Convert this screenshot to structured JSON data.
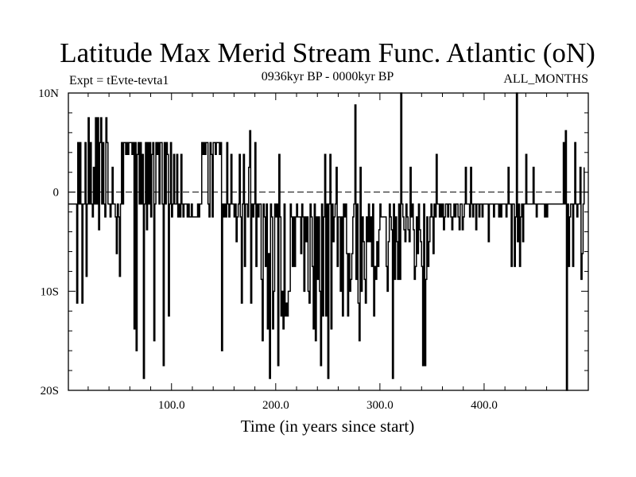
{
  "chart_data": {
    "type": "line",
    "title": "Latitude Max Merid Stream Func. Atlantic (oN)",
    "subtitle_left": "Expt = tEvte-tevta1",
    "subtitle_center": "0936kyr BP - 0000kyr BP",
    "subtitle_right": "ALL_MONTHS",
    "xlabel": "Time (in years since start)",
    "ylabel": "",
    "xlim": [
      1,
      500
    ],
    "ylim": [
      -20,
      10
    ],
    "x_ticks": [
      100,
      200,
      300,
      400
    ],
    "x_tick_labels": [
      "100.0",
      "200.0",
      "300.0",
      "400.0"
    ],
    "y_ticks": [
      -20,
      -10,
      0,
      10
    ],
    "y_tick_labels": [
      "20S",
      "10S",
      "0",
      "10N"
    ],
    "reference_line_y": 0,
    "series": [
      {
        "name": "Latitude of max Atlantic meridional stream function",
        "x_start": 1,
        "x_step": 1,
        "values": [
          -1.2,
          -1.2,
          -1.2,
          -1.2,
          -1.2,
          -1.2,
          -1.2,
          -1.2,
          -11.2,
          5,
          -1.2,
          5,
          -1.2,
          -11.2,
          -1.2,
          -1.2,
          5,
          -8.5,
          -1.2,
          7.5,
          -1.2,
          5,
          -1.2,
          -2.5,
          2.5,
          -1.2,
          7.5,
          -1.2,
          7.5,
          -3.8,
          5,
          7.5,
          -1.2,
          5,
          -1.2,
          -2.5,
          7.5,
          5,
          -1.2,
          -1.2,
          -2.5,
          -1.2,
          2.5,
          -1.2,
          -1.2,
          -2.5,
          -6.2,
          -1.2,
          -2.5,
          -8.5,
          -1.2,
          5,
          -1.2,
          5,
          5,
          3.8,
          5,
          3.8,
          5,
          5,
          5,
          3.8,
          5,
          -13.8,
          5,
          -16,
          3.8,
          5,
          -1.2,
          5,
          -1.2,
          3.8,
          -18.8,
          -1.2,
          5,
          -3.8,
          5,
          -1.2,
          5,
          -2.5,
          3.8,
          5,
          -15,
          -1.2,
          5,
          3.8,
          5,
          -1.2,
          5,
          5,
          -1.2,
          -17.5,
          5,
          -1.2,
          5,
          3.8,
          -12.5,
          -1.2,
          5,
          -2.5,
          -1.2,
          3.8,
          -1.2,
          -1.2,
          3.8,
          -2.5,
          -1.2,
          -2.5,
          3.8,
          -1.2,
          -2.5,
          -1.2,
          -1.2,
          -1.2,
          -2.5,
          -1.2,
          -2.5,
          -2.5,
          -1.2,
          -2.5,
          -2.5,
          -2.5,
          -2.5,
          -2.5,
          -1.2,
          -2.5,
          -1.2,
          -1.2,
          5,
          3.8,
          5,
          3.8,
          5,
          5,
          -1.2,
          -2.5,
          5,
          3.8,
          -2.5,
          5,
          5,
          3.8,
          5,
          5,
          5,
          3.8,
          5,
          -16,
          -1.2,
          -2.5,
          -1.2,
          -2.5,
          5,
          -1.2,
          -2.5,
          -1.2,
          3.8,
          -1.2,
          -1.2,
          -2.5,
          -1.2,
          -5,
          -2.5,
          -1.2,
          3.8,
          -2.5,
          -11.2,
          -1.2,
          3.8,
          -7.5,
          -1.2,
          -1.2,
          -2.5,
          2.5,
          6.2,
          -11.2,
          -1.2,
          -2.5,
          -1.2,
          5,
          -7.5,
          -1.2,
          -2.5,
          -1.2,
          -1.2,
          -8.8,
          -15,
          -1.2,
          -2.5,
          -7.5,
          -1.2,
          -13.8,
          -6.2,
          -18.8,
          -1.2,
          -2.5,
          -13.8,
          -10,
          -1.2,
          -2.5,
          -1.2,
          -17.5,
          3.8,
          -2.5,
          -12.5,
          -10,
          -13.8,
          -1.2,
          -12.5,
          -11.2,
          -12.5,
          -10,
          -10,
          -1.2,
          -2.5,
          -7.5,
          -2.5,
          -7.5,
          -2.5,
          -1.2,
          -2.5,
          -2.5,
          -2.5,
          -6.2,
          -1.2,
          -2.5,
          -10,
          -2.5,
          -5,
          -2.5,
          -10,
          -11.2,
          -1.2,
          -2.5,
          -7.5,
          -13.8,
          -1.2,
          -15,
          -2.5,
          -8.8,
          -2.5,
          -10,
          -17.5,
          -1.2,
          -12.5,
          -2.5,
          3.8,
          -12.5,
          -1.2,
          -18.8,
          -1.2,
          3.8,
          -13.8,
          -1.2,
          -5,
          -2.5,
          -1.2,
          2.5,
          -7.5,
          -2.5,
          -2.5,
          -10,
          -2.5,
          -12.5,
          -1.2,
          -2.5,
          -1.2,
          -6.2,
          -12.5,
          -6.2,
          -10,
          -8.8,
          -6.2,
          -2.5,
          -1.2,
          8.8,
          -8.8,
          -1.2,
          -11.2,
          -15,
          2.5,
          -10,
          -2.5,
          -5,
          -8.8,
          -11.2,
          -2.5,
          -5,
          -1.2,
          -5,
          -2.5,
          -7.5,
          -1.2,
          -12.5,
          -7.5,
          -8.8,
          -5,
          -7.5,
          -3.8,
          -1.2,
          -2.5,
          -2.5,
          -2.5,
          -2.5,
          -2.5,
          -7.5,
          -10,
          -5,
          -1.2,
          -2.5,
          -3.8,
          -18.8,
          -1.2,
          -8.8,
          -2.5,
          -5,
          -8.8,
          -1.2,
          -8.8,
          10,
          -1.2,
          -2.5,
          -3.8,
          -5,
          -1.2,
          -2.5,
          -3.8,
          -5,
          2.5,
          -2.5,
          -1.2,
          -3.8,
          -8.8,
          -7.5,
          -2.5,
          -6.2,
          -1.2,
          -3.8,
          -5,
          -7.5,
          -17.5,
          -1.2,
          -17.5,
          -8.8,
          -2.5,
          -7.5,
          -5,
          -2.5,
          -1.2,
          -2.5,
          -6.2,
          -1.2,
          -2.5,
          3.8,
          -1.2,
          -1.2,
          -2.5,
          -1.2,
          -2.5,
          -1.2,
          -3.8,
          -2.5,
          -1.2,
          -1.2,
          -2.5,
          -1.2,
          -1.2,
          -2.5,
          -3.8,
          -2.5,
          -1.2,
          -2.5,
          -1.2,
          -1.2,
          -2.5,
          -3.8,
          -1.2,
          -1.2,
          -3.8,
          -2.5,
          -1.2,
          2.5,
          -1.2,
          -1.2,
          -1.2,
          -2.5,
          2.5,
          -1.2,
          -2.5,
          -1.2,
          -1.2,
          -3.8,
          -1.2,
          -1.2,
          -2.5,
          -1.2,
          -1.2,
          -2.5,
          -1.2,
          -1.2,
          -1.2,
          -1.2,
          -1.2,
          -5,
          -1.2,
          -1.2,
          -1.2,
          -1.2,
          -2.5,
          -1.2,
          -1.2,
          -1.2,
          -1.2,
          -2.5,
          -1.2,
          -2.5,
          -1.2,
          -1.2,
          -1.2,
          -1.2,
          -2.5,
          -1.2,
          2.5,
          -1.2,
          -1.2,
          -7.5,
          -1.2,
          -1.2,
          -7.5,
          -2.5,
          10,
          -5,
          -1.2,
          -7.5,
          -2.5,
          -1.2,
          -5,
          -1.2,
          -1.2,
          3.8,
          -1.2,
          -1.2,
          -1.2,
          -1.2,
          -1.2,
          -1.2,
          2.5,
          -1.2,
          -1.2,
          -2.5,
          -1.2,
          -1.2,
          -1.2,
          -1.2,
          -1.2,
          -1.2,
          -1.2,
          -2.5,
          -1.2,
          -2.5,
          -1.2,
          -1.2,
          -1.2,
          -1.2,
          -1.2,
          -1.2,
          -1.2,
          -1.2,
          -1.2,
          -1.2,
          -1.2,
          -1.2,
          -1.2,
          -1.2,
          -1.2,
          5,
          -1.2,
          6.2,
          -20,
          -1.2,
          -7.5,
          -2.5,
          -1.2,
          -1.2,
          -7.5,
          -1.2,
          5,
          -1.2,
          -2.5,
          -1.2,
          -1.2,
          2.5,
          -8.8,
          -6.2,
          -1.2,
          2.5
        ]
      }
    ]
  }
}
